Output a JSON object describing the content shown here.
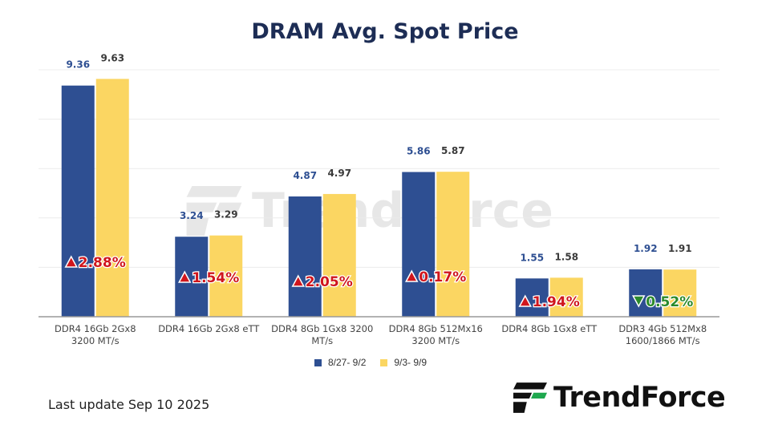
{
  "page": {
    "title": "DRAM Avg. Spot Price",
    "last_update": "Last update Sep 10  2025",
    "brand": "TrendForce",
    "watermark": "TrendForce"
  },
  "colors": {
    "series1": "#2e4f92",
    "series2": "#fbd662",
    "up": "#d0161d",
    "down": "#2b8a2b",
    "gridline": "#ececec",
    "axis": "#9a9a9a",
    "label1": "#2e4f92",
    "label2": "#3a3a3a"
  },
  "chart_data": {
    "type": "bar",
    "title": "DRAM Avg. Spot Price",
    "categories": [
      [
        "DDR4 16Gb 2Gx8",
        "3200 MT/s"
      ],
      [
        "DDR4 16Gb 2Gx8 eTT"
      ],
      [
        "DDR4 8Gb 1Gx8 3200",
        "MT/s"
      ],
      [
        "DDR4 8Gb 512Mx16",
        "3200 MT/s"
      ],
      [
        "DDR4 8Gb 1Gx8 eTT"
      ],
      [
        "DDR3 4Gb 512Mx8",
        "1600/1866  MT/s"
      ]
    ],
    "series": [
      {
        "name": "8/27- 9/2",
        "values": [
          9.36,
          3.24,
          4.87,
          5.86,
          1.55,
          1.92
        ]
      },
      {
        "name": "9/3- 9/9",
        "values": [
          9.63,
          3.29,
          4.97,
          5.87,
          1.58,
          1.91
        ]
      }
    ],
    "changes": [
      {
        "direction": "up",
        "text": "2.88%"
      },
      {
        "direction": "up",
        "text": "1.54%"
      },
      {
        "direction": "up",
        "text": "2.05%"
      },
      {
        "direction": "up",
        "text": "0.17%"
      },
      {
        "direction": "up",
        "text": "1.94%"
      },
      {
        "direction": "down",
        "text": "0.52%"
      }
    ],
    "ylim": [
      0,
      10
    ],
    "grid": true,
    "legend": "bottom-center"
  }
}
